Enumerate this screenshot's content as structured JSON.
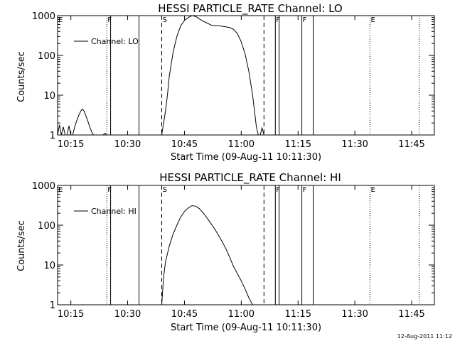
{
  "stamp": "12-Aug-2011 11:12",
  "chart_data": [
    {
      "type": "line",
      "title": "HESSI PARTICLE_RATE Channel: LO",
      "xlabel": "Start Time (09-Aug-11 10:11:30)",
      "ylabel": "Counts/sec",
      "yscale": "log",
      "ylim": [
        1,
        1000
      ],
      "xlim": [
        "10:11:30",
        "11:51:00"
      ],
      "x_ticks": [
        "10:15",
        "10:30",
        "10:45",
        "11:00",
        "11:15",
        "11:30",
        "11:45"
      ],
      "y_ticks": [
        "1",
        "10",
        "100",
        "1000"
      ],
      "legend": {
        "position": "top-left",
        "entries": [
          "Channel: LO"
        ]
      },
      "markers": [
        {
          "label": "E",
          "time": "10:11:30",
          "style": "dotted"
        },
        {
          "label": "F",
          "time": "10:24:30",
          "style": "dotted"
        },
        {
          "label": "",
          "time": "10:25:30",
          "style": "solid"
        },
        {
          "label": "",
          "time": "10:33:00",
          "style": "solid"
        },
        {
          "label": "S",
          "time": "10:39:00",
          "style": "dashed"
        },
        {
          "label": "",
          "time": "11:06:00",
          "style": "dashed"
        },
        {
          "label": "F",
          "time": "11:09:00",
          "style": "solid"
        },
        {
          "label": "",
          "time": "11:10:00",
          "style": "solid"
        },
        {
          "label": "F",
          "time": "11:16:00",
          "style": "solid"
        },
        {
          "label": "",
          "time": "11:19:00",
          "style": "solid"
        },
        {
          "label": "E",
          "time": "11:34:00",
          "style": "dotted"
        },
        {
          "label": "",
          "time": "11:47:00",
          "style": "dotted"
        }
      ],
      "series": [
        {
          "x": [
            "10:11:30",
            "10:12:00",
            "10:12:30",
            "10:13:00",
            "10:13:30",
            "10:14:00",
            "10:14:30",
            "10:15:00",
            "10:15:30",
            "10:16:00",
            "10:16:30",
            "10:17:00",
            "10:17:30",
            "10:18:00",
            "10:18:30",
            "10:19:00",
            "10:19:30",
            "10:20:00",
            "10:20:30",
            "10:21:00",
            "10:21:30",
            "10:22:00",
            "10:22:30",
            "10:23:00",
            "10:23:30",
            "10:24:00",
            "10:24:30",
            "10:25:30",
            "10:39:00",
            "10:40:00",
            "10:40:30",
            "10:41:00",
            "10:42:00",
            "10:43:00",
            "10:44:00",
            "10:45:00",
            "10:46:00",
            "10:47:00",
            "10:48:00",
            "10:49:00",
            "10:50:00",
            "10:51:00",
            "10:52:00",
            "10:53:00",
            "10:54:00",
            "10:55:00",
            "10:56:00",
            "10:57:00",
            "10:58:00",
            "10:59:00",
            "11:00:00",
            "11:01:00",
            "11:02:00",
            "11:03:00",
            "11:03:30",
            "11:04:00",
            "11:04:30",
            "11:05:00",
            "11:05:30",
            "11:06:00"
          ],
          "y": [
            1,
            1.8,
            1,
            1.6,
            1,
            1,
            1.7,
            1,
            1,
            1.6,
            2.2,
            3,
            3.8,
            4.5,
            4,
            3,
            2.2,
            1.6,
            1.2,
            1,
            1,
            1,
            1,
            1,
            1,
            1.1,
            1,
            1,
            1,
            4,
            10,
            30,
            120,
            300,
            550,
            750,
            900,
            1000,
            950,
            820,
            720,
            650,
            580,
            560,
            560,
            540,
            520,
            500,
            450,
            350,
            220,
            110,
            40,
            10,
            4,
            1.6,
            1,
            1,
            1.5,
            1
          ]
        }
      ]
    },
    {
      "type": "line",
      "title": "HESSI PARTICLE_RATE Channel: HI",
      "xlabel": "Start Time (09-Aug-11 10:11:30)",
      "ylabel": "Counts/sec",
      "yscale": "log",
      "ylim": [
        1,
        1000
      ],
      "xlim": [
        "10:11:30",
        "11:51:00"
      ],
      "x_ticks": [
        "10:15",
        "10:30",
        "10:45",
        "11:00",
        "11:15",
        "11:30",
        "11:45"
      ],
      "y_ticks": [
        "1",
        "10",
        "100",
        "1000"
      ],
      "legend": {
        "position": "top-left",
        "entries": [
          "Channel: HI"
        ]
      },
      "markers": [
        {
          "label": "E",
          "time": "10:11:30",
          "style": "dotted"
        },
        {
          "label": "F",
          "time": "10:24:30",
          "style": "dotted"
        },
        {
          "label": "",
          "time": "10:25:30",
          "style": "solid"
        },
        {
          "label": "",
          "time": "10:33:00",
          "style": "solid"
        },
        {
          "label": "S",
          "time": "10:39:00",
          "style": "dashed"
        },
        {
          "label": "",
          "time": "11:06:00",
          "style": "dashed"
        },
        {
          "label": "F",
          "time": "11:09:00",
          "style": "solid"
        },
        {
          "label": "",
          "time": "11:10:00",
          "style": "solid"
        },
        {
          "label": "F",
          "time": "11:16:00",
          "style": "solid"
        },
        {
          "label": "",
          "time": "11:19:00",
          "style": "solid"
        },
        {
          "label": "E",
          "time": "11:34:00",
          "style": "dotted"
        },
        {
          "label": "",
          "time": "11:47:00",
          "style": "dotted"
        }
      ],
      "series": [
        {
          "x": [
            "10:39:00",
            "10:39:30",
            "10:40:00",
            "10:41:00",
            "10:42:00",
            "10:43:00",
            "10:44:00",
            "10:45:00",
            "10:46:00",
            "10:47:00",
            "10:48:00",
            "10:49:00",
            "10:50:00",
            "10:51:00",
            "10:52:00",
            "10:53:00",
            "10:54:00",
            "10:55:00",
            "10:56:00",
            "10:57:00",
            "10:58:00",
            "10:59:00",
            "11:00:00",
            "11:01:00",
            "11:02:00",
            "11:03:00"
          ],
          "y": [
            1,
            5,
            12,
            30,
            60,
            100,
            160,
            220,
            270,
            310,
            300,
            260,
            200,
            150,
            110,
            80,
            55,
            38,
            25,
            15,
            9,
            6,
            4,
            2.5,
            1.5,
            1
          ]
        }
      ]
    }
  ]
}
